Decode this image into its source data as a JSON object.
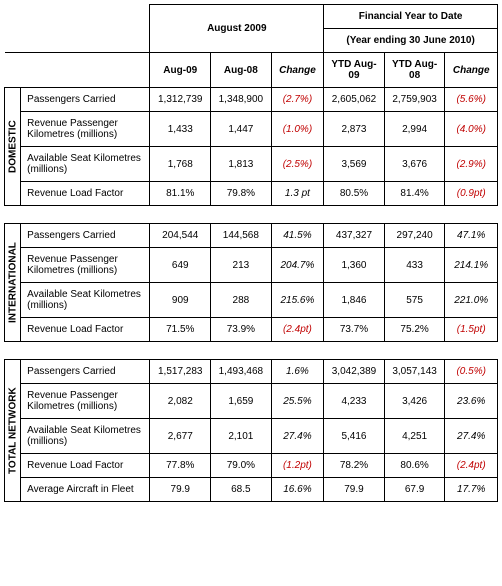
{
  "headers": {
    "month_group": "August 2009",
    "ytd_group_line1": "Financial Year to Date",
    "ytd_group_line2": "(Year ending 30 June 2010)",
    "cols": {
      "a1": "Aug-09",
      "a2": "Aug-08",
      "a3": "Change",
      "b1": "YTD Aug-09",
      "b2": "YTD Aug-08",
      "b3": "Change"
    }
  },
  "row_labels": {
    "pax": "Passengers Carried",
    "rpk": "Revenue Passenger Kilometres (millions)",
    "ask": "Available Seat Kilometres (millions)",
    "rlf": "Revenue Load Factor",
    "fleet": "Average Aircraft in Fleet"
  },
  "sections": {
    "domestic": {
      "title": "DOMESTIC",
      "rows": {
        "pax": {
          "a1": "1,312,739",
          "a2": "1,348,900",
          "a3": "(2.7%)",
          "a3neg": true,
          "b1": "2,605,062",
          "b2": "2,759,903",
          "b3": "(5.6%)",
          "b3neg": true
        },
        "rpk": {
          "a1": "1,433",
          "a2": "1,447",
          "a3": "(1.0%)",
          "a3neg": true,
          "b1": "2,873",
          "b2": "2,994",
          "b3": "(4.0%)",
          "b3neg": true
        },
        "ask": {
          "a1": "1,768",
          "a2": "1,813",
          "a3": "(2.5%)",
          "a3neg": true,
          "b1": "3,569",
          "b2": "3,676",
          "b3": "(2.9%)",
          "b3neg": true
        },
        "rlf": {
          "a1": "81.1%",
          "a2": "79.8%",
          "a3": "1.3 pt",
          "a3neg": false,
          "b1": "80.5%",
          "b2": "81.4%",
          "b3": "(0.9pt)",
          "b3neg": true
        }
      }
    },
    "international": {
      "title": "INTERNATIONAL",
      "rows": {
        "pax": {
          "a1": "204,544",
          "a2": "144,568",
          "a3": "41.5%",
          "a3neg": false,
          "b1": "437,327",
          "b2": "297,240",
          "b3": "47.1%",
          "b3neg": false
        },
        "rpk": {
          "a1": "649",
          "a2": "213",
          "a3": "204.7%",
          "a3neg": false,
          "b1": "1,360",
          "b2": "433",
          "b3": "214.1%",
          "b3neg": false
        },
        "ask": {
          "a1": "909",
          "a2": "288",
          "a3": "215.6%",
          "a3neg": false,
          "b1": "1,846",
          "b2": "575",
          "b3": "221.0%",
          "b3neg": false
        },
        "rlf": {
          "a1": "71.5%",
          "a2": "73.9%",
          "a3": "(2.4pt)",
          "a3neg": true,
          "b1": "73.7%",
          "b2": "75.2%",
          "b3": "(1.5pt)",
          "b3neg": true
        }
      }
    },
    "total": {
      "title": "TOTAL NETWORK",
      "rows": {
        "pax": {
          "a1": "1,517,283",
          "a2": "1,493,468",
          "a3": "1.6%",
          "a3neg": false,
          "b1": "3,042,389",
          "b2": "3,057,143",
          "b3": "(0.5%)",
          "b3neg": true
        },
        "rpk": {
          "a1": "2,082",
          "a2": "1,659",
          "a3": "25.5%",
          "a3neg": false,
          "b1": "4,233",
          "b2": "3,426",
          "b3": "23.6%",
          "b3neg": false
        },
        "ask": {
          "a1": "2,677",
          "a2": "2,101",
          "a3": "27.4%",
          "a3neg": false,
          "b1": "5,416",
          "b2": "4,251",
          "b3": "27.4%",
          "b3neg": false
        },
        "rlf": {
          "a1": "77.8%",
          "a2": "79.0%",
          "a3": "(1.2pt)",
          "a3neg": true,
          "b1": "78.2%",
          "b2": "80.6%",
          "b3": "(2.4pt)",
          "b3neg": true
        },
        "fleet": {
          "a1": "79.9",
          "a2": "68.5",
          "a3": "16.6%",
          "a3neg": false,
          "b1": "79.9",
          "b2": "67.9",
          "b3": "17.7%",
          "b3neg": false
        }
      }
    }
  }
}
